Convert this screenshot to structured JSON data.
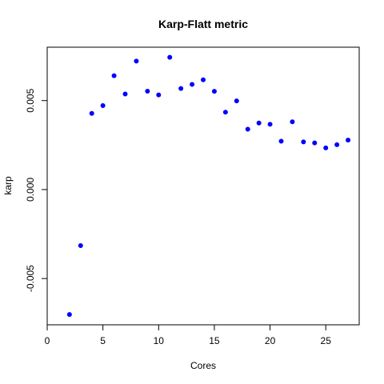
{
  "chart_data": {
    "type": "scatter",
    "title": "Karp-Flatt metric",
    "xlabel": "Cores",
    "ylabel": "karp",
    "xlim": [
      0,
      28
    ],
    "ylim": [
      -0.0076,
      0.008
    ],
    "x_ticks": [
      0,
      5,
      10,
      15,
      20,
      25
    ],
    "x_tick_labels": [
      "0",
      "5",
      "10",
      "15",
      "20",
      "25"
    ],
    "y_ticks": [
      -0.005,
      0.0,
      0.005
    ],
    "y_tick_labels": [
      "-0.005",
      "0.000",
      "0.005"
    ],
    "grid": false,
    "legend": "none",
    "point_color": "#0000ff",
    "x": [
      2,
      3,
      4,
      5,
      6,
      7,
      8,
      9,
      10,
      11,
      12,
      13,
      14,
      15,
      16,
      17,
      18,
      19,
      20,
      21,
      22,
      23,
      24,
      25,
      26,
      27
    ],
    "y": [
      -0.00702,
      -0.00315,
      0.00428,
      0.00472,
      0.0064,
      0.00537,
      0.00722,
      0.00553,
      0.00532,
      0.00743,
      0.00568,
      0.00591,
      0.00617,
      0.00552,
      0.00435,
      0.00498,
      0.00339,
      0.00374,
      0.00367,
      0.00272,
      0.00381,
      0.00268,
      0.00262,
      0.00234,
      0.00252,
      0.00278
    ]
  }
}
